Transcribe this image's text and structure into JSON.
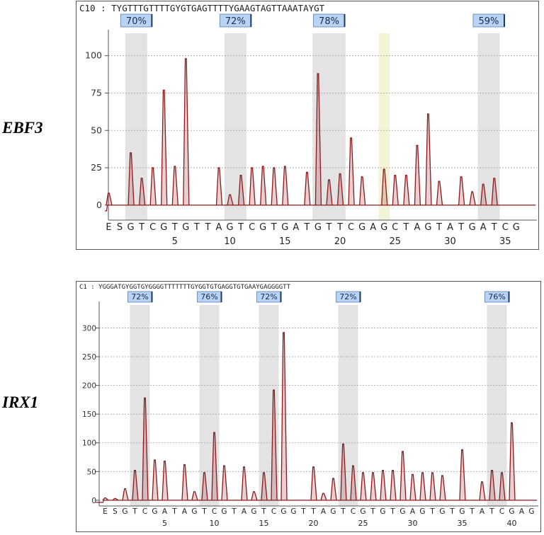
{
  "panels": [
    {
      "gene": "EBF3",
      "sequence_label": "C10 : TYGTTTGTTTTGYGTGAGTTTTYGAAGTAGTTAAATAYGT",
      "chart_data": {
        "type": "bar",
        "title": "",
        "xlabel": "",
        "ylabel": "",
        "ylim": [
          -10,
          115
        ],
        "y_ticks": [
          0,
          25,
          50,
          75,
          100
        ],
        "dispensation": [
          "E",
          "S",
          "G",
          "T",
          "C",
          "G",
          "T",
          "G",
          "T",
          "T",
          "A",
          "G",
          "T",
          "C",
          "G",
          "T",
          "G",
          "A",
          "T",
          "G",
          "T",
          "T",
          "C",
          "G",
          "A",
          "G",
          "C",
          "T",
          "A",
          "G",
          "T",
          "A",
          "T",
          "G",
          "A",
          "T",
          "C",
          "G"
        ],
        "x_ticks": [
          5,
          10,
          15,
          20,
          25,
          30,
          35
        ],
        "values": [
          8,
          -2,
          35,
          18,
          25,
          77,
          26,
          98,
          0,
          0,
          25,
          7,
          20,
          25,
          26,
          25,
          26,
          2,
          22,
          88,
          17,
          21,
          45,
          19,
          0,
          24,
          20,
          20,
          40,
          61,
          16,
          2,
          19,
          9,
          14,
          18,
          0,
          0
        ],
        "cpg_sites": [
          {
            "positions": [
              2,
              3
            ],
            "label": "70%"
          },
          {
            "positions": [
              11,
              12
            ],
            "label": "72%"
          },
          {
            "positions": [
              19,
              21
            ],
            "label": "78%"
          },
          {
            "positions": [
              34,
              35
            ],
            "label": "59%"
          }
        ],
        "control_positions": [
          25
        ]
      }
    },
    {
      "gene": "IRX1",
      "sequence_label": "C1 : YGGGATGYGGTGYGGGGTTTTTTTGYGGTGTGAGGTGTGAAYGAGGGGTT",
      "chart_data": {
        "type": "bar",
        "title": "",
        "xlabel": "",
        "ylabel": "",
        "ylim": [
          -10,
          340
        ],
        "y_ticks": [
          0,
          50,
          100,
          150,
          200,
          250,
          300
        ],
        "dispensation": [
          "E",
          "S",
          "G",
          "T",
          "C",
          "G",
          "A",
          "T",
          "A",
          "G",
          "T",
          "C",
          "G",
          "T",
          "A",
          "G",
          "T",
          "C",
          "G",
          "G",
          "T",
          "T",
          "A",
          "G",
          "T",
          "C",
          "G",
          "T",
          "G",
          "T",
          "G",
          "A",
          "G",
          "T",
          "G",
          "T",
          "G",
          "T",
          "A",
          "T",
          "C",
          "G",
          "A",
          "G"
        ],
        "x_ticks": [
          5,
          10,
          15,
          20,
          25,
          30,
          35,
          40
        ],
        "values": [
          4,
          3,
          20,
          52,
          178,
          70,
          68,
          0,
          62,
          15,
          48,
          118,
          60,
          0,
          58,
          15,
          48,
          192,
          292,
          0,
          0,
          58,
          12,
          38,
          98,
          60,
          48,
          48,
          52,
          52,
          85,
          45,
          48,
          48,
          43,
          0,
          88,
          0,
          32,
          52,
          48,
          135,
          0,
          0
        ],
        "cpg_sites": [
          {
            "positions": [
              3,
              4
            ],
            "label": "72%"
          },
          {
            "positions": [
              10,
              11
            ],
            "label": "76%"
          },
          {
            "positions": [
              16,
              17
            ],
            "label": "72%"
          },
          {
            "positions": [
              24,
              25
            ],
            "label": "72%"
          },
          {
            "positions": [
              39,
              40
            ],
            "label": "76%"
          }
        ],
        "control_positions": []
      }
    }
  ]
}
